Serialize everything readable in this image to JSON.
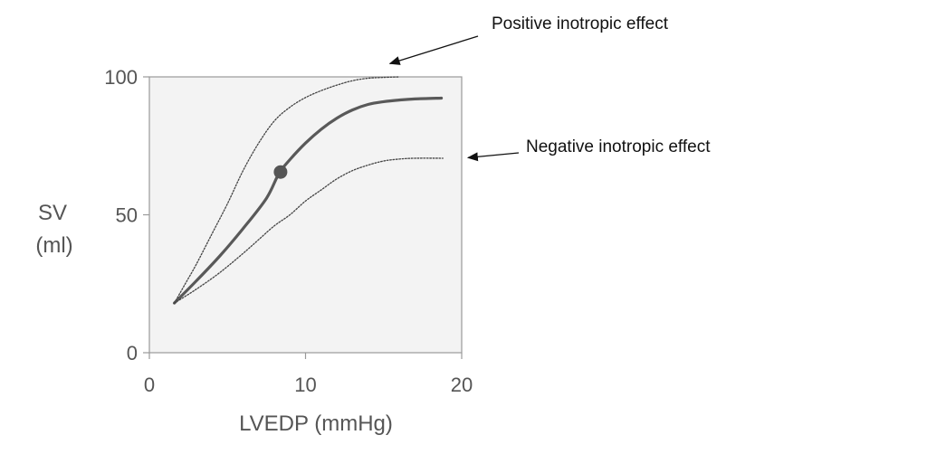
{
  "chart_data": {
    "type": "line",
    "xlabel": "LVEDP (mmHg)",
    "ylabel": [
      "SV",
      "(ml)"
    ],
    "xlim": [
      0,
      20
    ],
    "ylim": [
      0,
      100
    ],
    "x_ticks": [
      0,
      10,
      20
    ],
    "y_ticks": [
      0,
      50,
      100
    ],
    "grid": false,
    "series": [
      {
        "style": "solid",
        "color": "#595959",
        "points": [
          [
            1.6,
            18
          ],
          [
            3,
            26
          ],
          [
            4.5,
            35
          ],
          [
            6,
            45
          ],
          [
            7.5,
            56
          ],
          [
            8.3,
            65
          ],
          [
            9,
            70
          ],
          [
            10,
            76
          ],
          [
            11,
            81
          ],
          [
            12,
            85
          ],
          [
            13,
            88
          ],
          [
            14,
            90
          ],
          [
            15,
            91
          ],
          [
            16,
            91.6
          ],
          [
            17,
            92
          ],
          [
            18.7,
            92.3
          ]
        ]
      },
      {
        "style": "dotted",
        "color": "#444444",
        "points": [
          [
            1.6,
            18
          ],
          [
            2.3,
            25
          ],
          [
            3,
            32
          ],
          [
            4,
            43
          ],
          [
            5,
            54
          ],
          [
            6,
            66
          ],
          [
            7,
            76
          ],
          [
            8,
            84
          ],
          [
            9,
            89
          ],
          [
            10,
            92.5
          ],
          [
            11,
            95
          ],
          [
            12,
            97
          ],
          [
            13,
            98.6
          ],
          [
            14,
            99.5
          ],
          [
            15,
            99.8
          ],
          [
            16,
            100
          ]
        ]
      },
      {
        "style": "dotted",
        "color": "#444444",
        "points": [
          [
            1.6,
            18
          ],
          [
            3,
            23
          ],
          [
            4.5,
            29
          ],
          [
            6,
            36
          ],
          [
            7,
            41
          ],
          [
            8,
            46
          ],
          [
            9,
            50
          ],
          [
            10,
            55
          ],
          [
            11,
            59
          ],
          [
            12,
            63
          ],
          [
            13,
            66
          ],
          [
            14,
            68
          ],
          [
            15,
            69.5
          ],
          [
            16,
            70.2
          ],
          [
            17,
            70.5
          ],
          [
            18.8,
            70.5
          ]
        ]
      }
    ],
    "marker": {
      "x": 8.4,
      "y": 65.5,
      "color": "#555555"
    },
    "annotations": [
      {
        "text": "Positive inotropic effect",
        "target_x": 15.4,
        "target_y": 104.8
      },
      {
        "text": "Negative inotropic effect",
        "target_x": 20.4,
        "target_y": 70.7
      }
    ],
    "plot_background": "#f3f3f3",
    "frame_color": "#999999"
  }
}
